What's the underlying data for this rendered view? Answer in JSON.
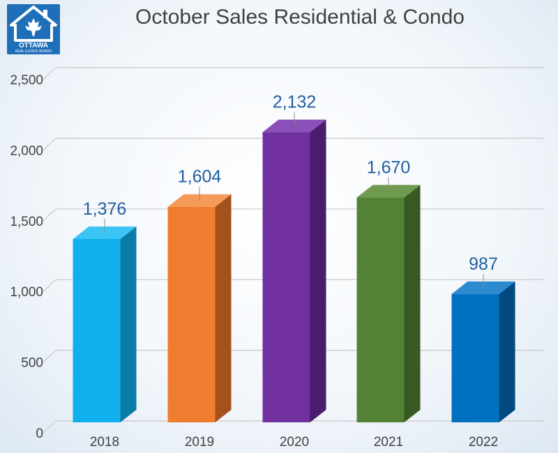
{
  "logo": {
    "text_main": "OTTAWA",
    "text_sub": "REAL ESTATE BOARD"
  },
  "chart_data": {
    "type": "bar",
    "title": "October Sales Residential & Condo",
    "xlabel": "",
    "ylabel": "",
    "categories": [
      "2018",
      "2019",
      "2020",
      "2021",
      "2022"
    ],
    "values": [
      1376,
      1604,
      2132,
      1670,
      987
    ],
    "data_labels": [
      "1,376",
      "1,604",
      "2,132",
      "1,670",
      "987"
    ],
    "ylim": [
      0,
      2500
    ],
    "yticks": [
      0,
      500,
      1000,
      1500,
      2000,
      2500
    ],
    "ytick_labels": [
      "0",
      "500",
      "1,000",
      "1,500",
      "2,000",
      "2,500"
    ],
    "grid": true,
    "style": "3d-column",
    "colors": [
      {
        "front": "#10b0ee",
        "side": "#0b7ca8",
        "top": "#3cc4f4"
      },
      {
        "front": "#ef7d2f",
        "side": "#a4521b",
        "top": "#f59b59"
      },
      {
        "front": "#7030a0",
        "side": "#4a1c6c",
        "top": "#8a4fb8"
      },
      {
        "front": "#548235",
        "side": "#385824",
        "top": "#6f9a4f"
      },
      {
        "front": "#0070c0",
        "side": "#004a80",
        "top": "#2d8ad0"
      }
    ],
    "label_color": "#1f5f9f",
    "grid_color": "#c8c8c8"
  }
}
